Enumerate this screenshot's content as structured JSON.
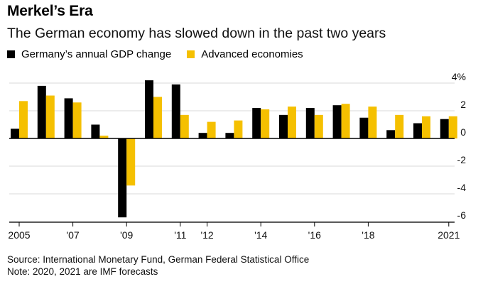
{
  "title": "Merkel’s Era",
  "subtitle": "The German economy has slowed down in the past two years",
  "legend": {
    "germany": "Germany’s annual GDP change",
    "advanced": "Advanced economies"
  },
  "colors": {
    "germany": "#000000",
    "advanced": "#f5c000",
    "grid": "#d9d9d9",
    "axis": "#000000"
  },
  "source": "Source: International Monetary Fund, German Federal Statistical Office",
  "note": "Note: 2020, 2021 are IMF forecasts",
  "chart_data": {
    "type": "bar",
    "title": "Merkel’s Era",
    "subtitle": "The German economy has slowed down in the past two years",
    "categories": [
      "2005",
      "2006",
      "2007",
      "2008",
      "2009",
      "2010",
      "2011",
      "2012",
      "2013",
      "2014",
      "2015",
      "2016",
      "2017",
      "2018",
      "2019",
      "2020",
      "2021"
    ],
    "series": [
      {
        "name": "Germany’s annual GDP change",
        "key": "germany",
        "values": [
          0.7,
          3.8,
          2.9,
          1.0,
          -5.7,
          4.2,
          3.9,
          0.4,
          0.4,
          2.2,
          1.7,
          2.2,
          2.4,
          1.5,
          0.6,
          1.1,
          1.4
        ]
      },
      {
        "name": "Advanced economies",
        "key": "advanced",
        "values": [
          2.7,
          3.1,
          2.6,
          0.2,
          -3.4,
          3.0,
          1.7,
          1.2,
          1.3,
          2.1,
          2.3,
          1.7,
          2.5,
          2.3,
          1.7,
          1.6,
          1.6
        ]
      }
    ],
    "ylim": [
      -6.5,
      4.2
    ],
    "yticks": [
      4,
      2,
      0,
      -2,
      -4,
      -6
    ],
    "ytick_labels": [
      "4%",
      "2",
      "0",
      "-2",
      "-4",
      "-6"
    ],
    "x_tick_labels": [
      {
        "category": "2005",
        "label": "2005"
      },
      {
        "category": "2007",
        "label": "'07"
      },
      {
        "category": "2009",
        "label": "'09"
      },
      {
        "category": "2011",
        "label": "'11"
      },
      {
        "category": "2012",
        "label": "'12"
      },
      {
        "category": "2014",
        "label": "'14"
      },
      {
        "category": "2016",
        "label": "'16"
      },
      {
        "category": "2018",
        "label": "'18"
      },
      {
        "category": "2021",
        "label": "2021"
      }
    ],
    "xlabel": "",
    "ylabel": "",
    "grid": true,
    "legend_position": "top-left"
  }
}
